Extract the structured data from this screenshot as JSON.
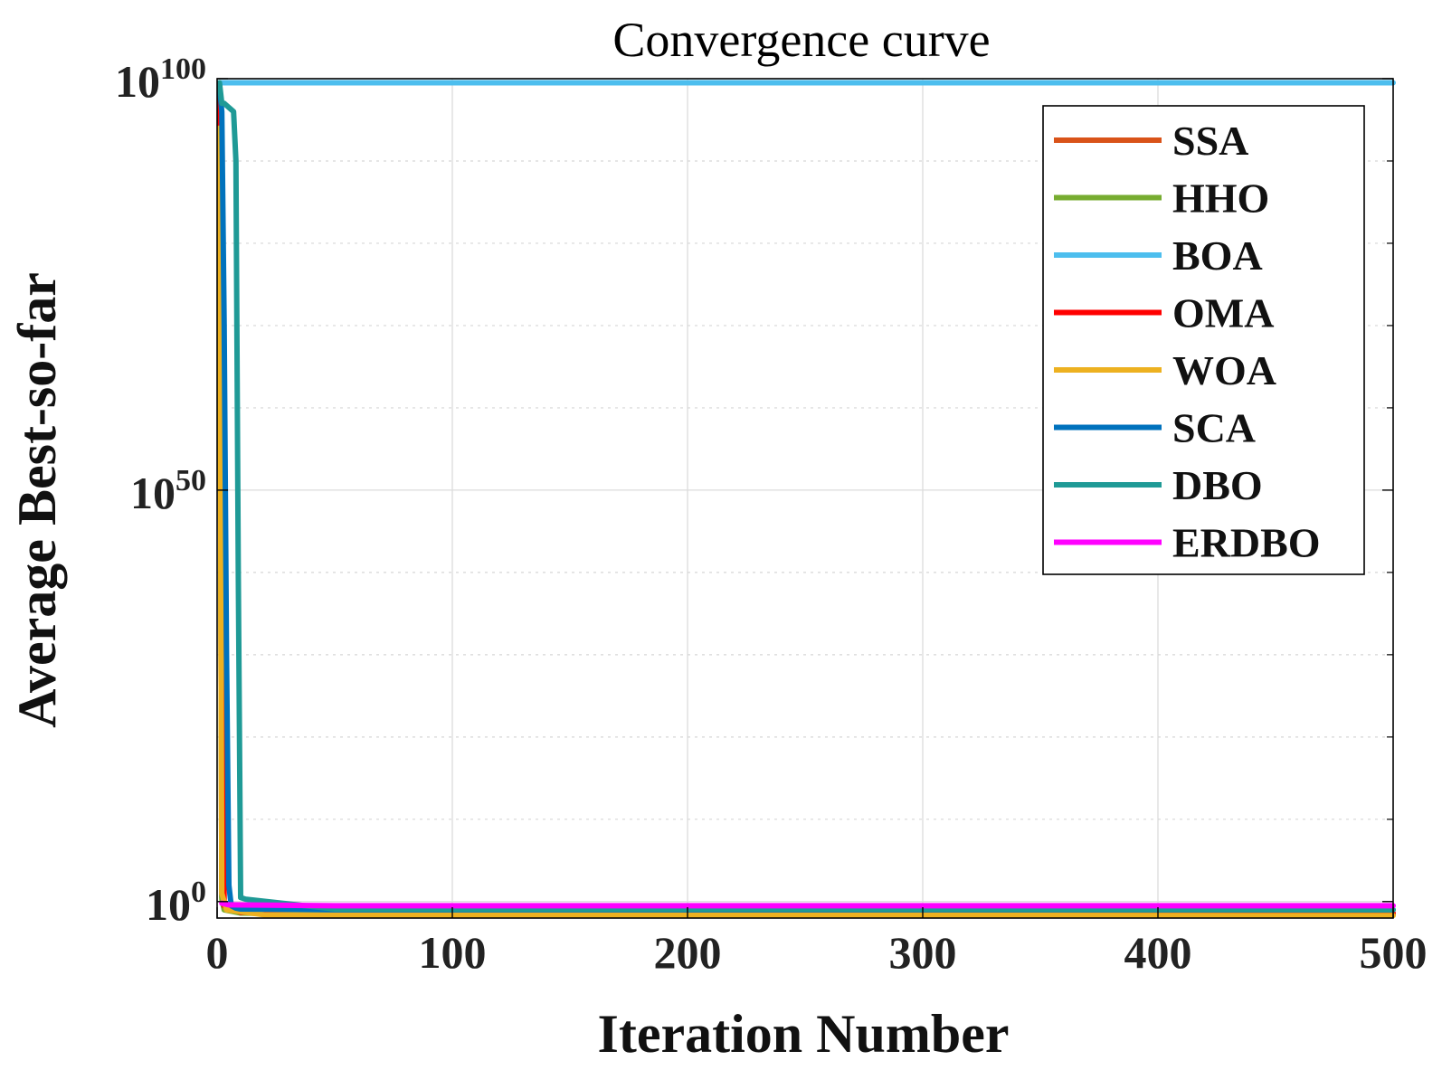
{
  "chart_data": {
    "type": "line",
    "title": "Convergence curve",
    "xlabel": "Iteration Number",
    "ylabel": "Average Best-so-far",
    "xlim": [
      0,
      500
    ],
    "ylim_log10": [
      -2,
      100
    ],
    "y_scale": "log",
    "grid": true,
    "legend_position": "top-right",
    "x_ticks": [
      {
        "value": 0,
        "label": "0"
      },
      {
        "value": 100,
        "label": "100"
      },
      {
        "value": 200,
        "label": "200"
      },
      {
        "value": 300,
        "label": "300"
      },
      {
        "value": 400,
        "label": "400"
      },
      {
        "value": 500,
        "label": "500"
      }
    ],
    "y_ticks": [
      {
        "exp": 0,
        "base": "10",
        "sup": "0"
      },
      {
        "exp": 50,
        "base": "10",
        "sup": "50"
      },
      {
        "exp": 100,
        "base": "10",
        "sup": "100"
      }
    ],
    "y_minor_log10": [
      10,
      20,
      30,
      40,
      60,
      70,
      80,
      90
    ],
    "series": [
      {
        "name": "SSA",
        "color": "#D95319",
        "x": [
          1,
          2,
          4,
          10,
          50,
          500
        ],
        "log10_y": [
          95,
          0.5,
          -0.8,
          -1.2,
          -1.5,
          -1.6
        ]
      },
      {
        "name": "HHO",
        "color": "#77AC30",
        "x": [
          1,
          2,
          3,
          10,
          50,
          500
        ],
        "log10_y": [
          96,
          0.3,
          -1.0,
          -1.4,
          -1.6,
          -1.6
        ]
      },
      {
        "name": "BOA",
        "color": "#4DBEEE",
        "x": [
          1,
          500
        ],
        "log10_y": [
          99.5,
          99.5
        ]
      },
      {
        "name": "OMA",
        "color": "#FF0000",
        "x": [
          1,
          2,
          3,
          10,
          500
        ],
        "log10_y": [
          98,
          50,
          -0.5,
          -1.3,
          -1.4
        ]
      },
      {
        "name": "WOA",
        "color": "#EDB120",
        "x": [
          1,
          2,
          4,
          20,
          500
        ],
        "log10_y": [
          94,
          1,
          -1.0,
          -1.6,
          -1.7
        ]
      },
      {
        "name": "SCA",
        "color": "#0072BD",
        "x": [
          1,
          2,
          3,
          4,
          5,
          6,
          8,
          10,
          50,
          500
        ],
        "log10_y": [
          99,
          96,
          70,
          30,
          2,
          -0.5,
          -0.8,
          -0.9,
          -1.0,
          -1.0
        ]
      },
      {
        "name": "DBO",
        "color": "#1F9A96",
        "x": [
          1,
          2,
          3,
          7,
          8,
          9,
          10,
          12,
          50,
          500
        ],
        "log10_y": [
          99.5,
          97,
          97,
          96,
          90,
          40,
          0.5,
          0.3,
          -0.9,
          -1.0
        ]
      },
      {
        "name": "ERDBO",
        "color": "#FF00FF",
        "x": [
          2,
          5,
          50,
          500
        ],
        "log10_y": [
          -0.2,
          -0.4,
          -0.5,
          -0.5
        ]
      }
    ]
  }
}
